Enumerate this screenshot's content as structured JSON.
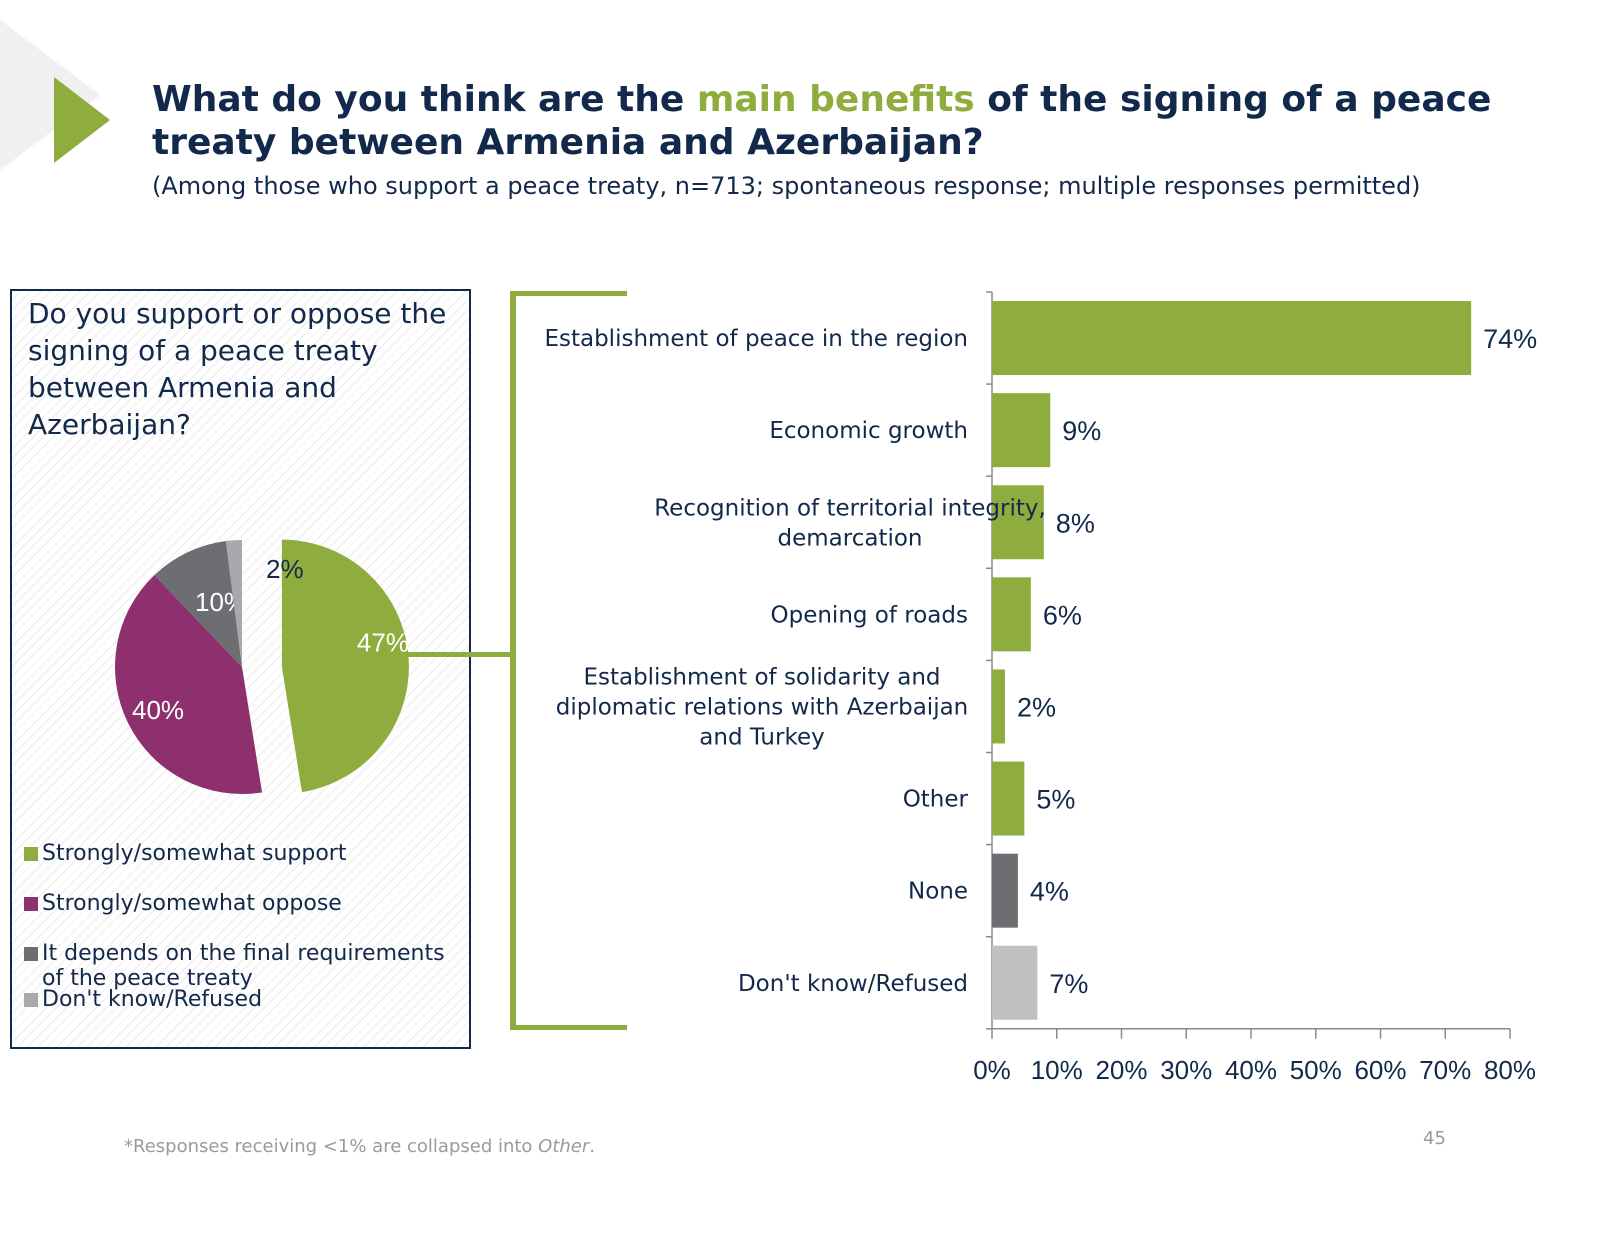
{
  "header": {
    "title_part1": "What do you think are the ",
    "title_highlight": "main benefits",
    "title_part2": " of the signing of a peace treaty between Armenia and Azerbaijan?",
    "subtitle": "(Among those who support a peace treaty, n=713; spontaneous response; multiple responses permitted)"
  },
  "colors": {
    "navy": "#13294b",
    "green": "#8fad3e",
    "purple": "#8e2f6e",
    "dark_gray": "#6d6e71",
    "light_gray": "#a7a9ac",
    "bar_light_gray": "#c0c0c0"
  },
  "footer": {
    "footnote_prefix": "*Responses receiving <1% are collapsed into ",
    "footnote_italic": "Other",
    "footnote_suffix": ".",
    "page_number": "45"
  },
  "chart_data": [
    {
      "type": "pie",
      "title": "Do you support or oppose the signing of a peace treaty between Armenia and Azerbaijan?",
      "slices": [
        {
          "label": "Strongly/somewhat support",
          "value": 47,
          "display": "47%",
          "color": "#8fad3e",
          "exploded": true
        },
        {
          "label": "Strongly/somewhat oppose",
          "value": 40,
          "display": "40%",
          "color": "#8e2f6e"
        },
        {
          "label": "It depends on the final requirements of the peace treaty",
          "value": 10,
          "display": "10%",
          "color": "#6d6e71"
        },
        {
          "label": "Don't know/Refused",
          "value": 2,
          "display": "2%",
          "color": "#a7a9ac"
        }
      ],
      "legend_placement": "bottom"
    },
    {
      "type": "bar",
      "orientation": "horizontal",
      "categories": [
        "Establishment of peace in the region",
        "Economic growth",
        "Recognition of territorial integrity, demarcation",
        "Opening of roads",
        "Establishment of solidarity and diplomatic relations with Azerbaijan and Turkey",
        "Other",
        "None",
        "Don't know/Refused"
      ],
      "category_lines": [
        [
          "Establishment of peace in the region"
        ],
        [
          "Economic growth"
        ],
        [
          "Recognition of territorial integrity,",
          "demarcation"
        ],
        [
          "Opening of roads"
        ],
        [
          "Establishment of solidarity and",
          "diplomatic relations with Azerbaijan",
          "and Turkey"
        ],
        [
          "Other"
        ],
        [
          "None"
        ],
        [
          "Don't know/Refused"
        ]
      ],
      "values": [
        74,
        9,
        8,
        6,
        2,
        5,
        4,
        7
      ],
      "data_labels": [
        "74%",
        "9%",
        "8%",
        "6%",
        "2%",
        "5%",
        "4%",
        "7%"
      ],
      "bar_colors": [
        "#8fad3e",
        "#8fad3e",
        "#8fad3e",
        "#8fad3e",
        "#8fad3e",
        "#8fad3e",
        "#6d6e71",
        "#c0c0c0"
      ],
      "xlim": [
        0,
        80
      ],
      "xticks": [
        0,
        10,
        20,
        30,
        40,
        50,
        60,
        70,
        80
      ],
      "xtick_labels": [
        "0%",
        "10%",
        "20%",
        "30%",
        "40%",
        "50%",
        "60%",
        "70%",
        "80%"
      ],
      "xlabel": "",
      "ylabel": "",
      "grid": false
    }
  ]
}
